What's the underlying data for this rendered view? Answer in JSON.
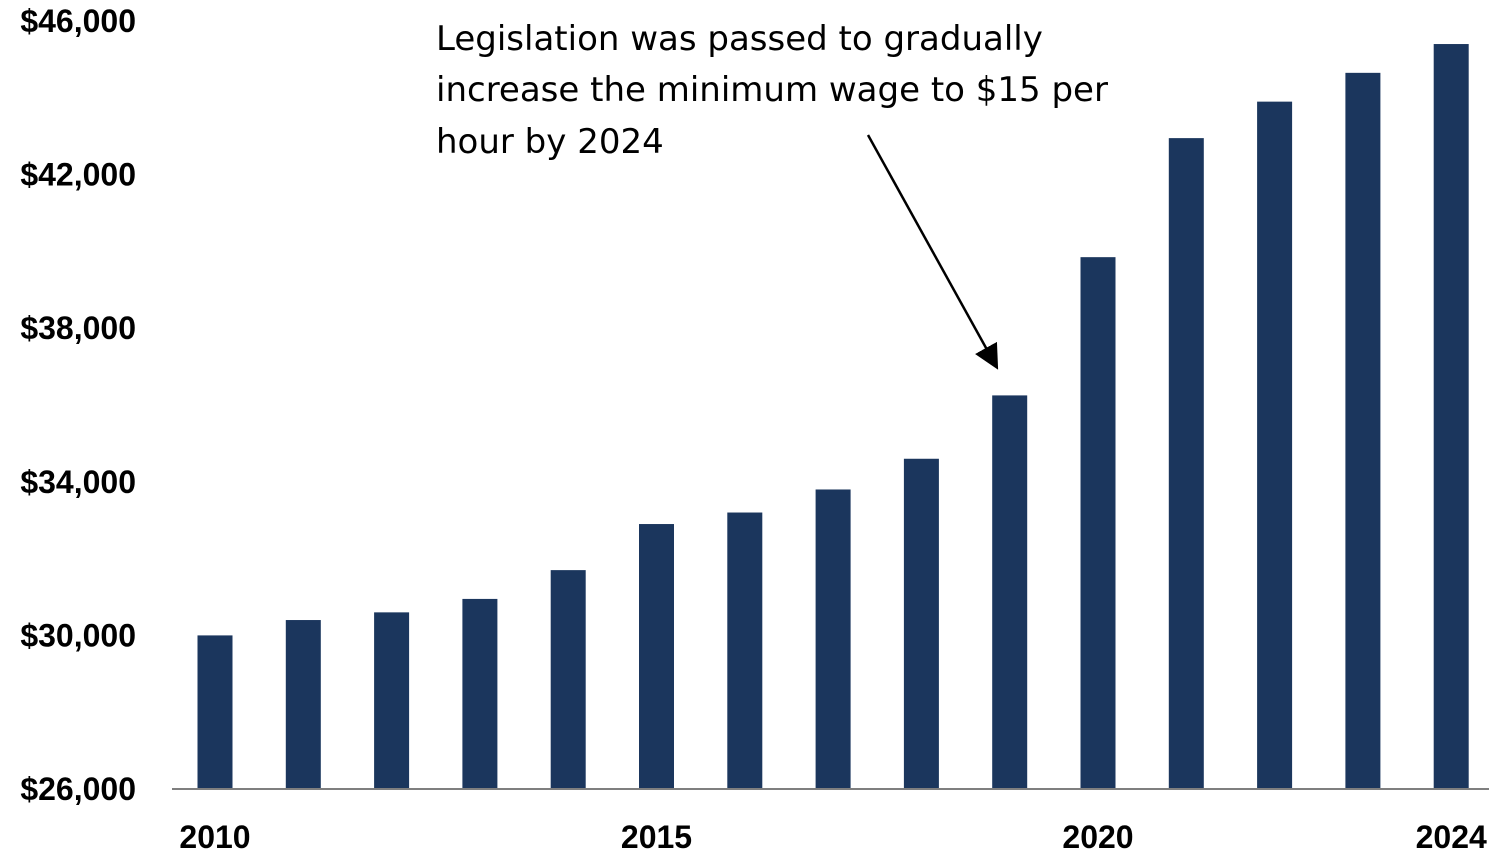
{
  "colors": {
    "bar": "#1b365d",
    "axis": "#7f7f7f",
    "text": "#000000"
  },
  "annotation": {
    "lines": [
      "Legislation was passed to gradually",
      "increase the minimum wage to $15 per",
      "hour by 2024"
    ],
    "points_to_category": "2019"
  },
  "chart_data": {
    "type": "bar",
    "categories": [
      "2010",
      "2011",
      "2012",
      "2013",
      "2014",
      "2015",
      "2016",
      "2017",
      "2018",
      "2019",
      "2020",
      "2021",
      "2022",
      "2023",
      "2024"
    ],
    "values": [
      30000,
      30400,
      30600,
      30950,
      31700,
      32900,
      33200,
      33800,
      34600,
      36250,
      39850,
      42950,
      43900,
      44650,
      45400
    ],
    "title": "",
    "xlabel": "",
    "ylabel": "",
    "ylim": [
      26000,
      46000
    ],
    "yticks": [
      26000,
      30000,
      34000,
      38000,
      42000,
      46000
    ],
    "ytick_labels": [
      "$26,000",
      "$30,000",
      "$34,000",
      "$38,000",
      "$42,000",
      "$46,000"
    ],
    "xtick_labels": [
      "2010",
      "2015",
      "2020",
      "2024"
    ],
    "grid": false,
    "legend": "none"
  }
}
